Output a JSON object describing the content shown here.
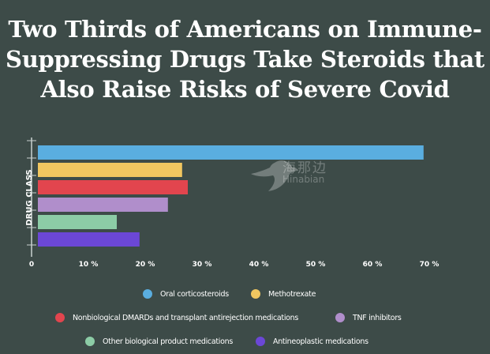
{
  "title_lines": [
    "Two Thirds of Americans on Immune-",
    "Suppressing Drugs Take Steroids that",
    "Also Raise Risks of Severe Covid"
  ],
  "watermark": {
    "cn": "海那边",
    "en": "Hinabian"
  },
  "colors": {
    "background": "#3d4b48",
    "axis": "#c9d2cf",
    "text": "#ffffff"
  },
  "chart_data": {
    "type": "bar",
    "orientation": "horizontal",
    "ylabel": "DRUG CLASS",
    "xlabel": "",
    "xlim": [
      0,
      70
    ],
    "x_ticks": [
      "0",
      "10 %",
      "20 %",
      "30 %",
      "40 %",
      "50 %",
      "60 %",
      "70 %"
    ],
    "x_tick_values": [
      0,
      10,
      20,
      30,
      40,
      50,
      60,
      70
    ],
    "categories": [
      "Oral corticosteroids",
      "Methotrexate",
      "Nonbiological DMARDs and transplant antirejection medications",
      "TNF inhibitors",
      "Other biological product medications",
      "Antineoplastic medications"
    ],
    "values": [
      69,
      26.5,
      27.5,
      24,
      15,
      19
    ],
    "colors": [
      "#5aaee0",
      "#f1c760",
      "#e2454e",
      "#b08ecb",
      "#8ccca6",
      "#6b47d6"
    ],
    "legend_position": "bottom"
  }
}
